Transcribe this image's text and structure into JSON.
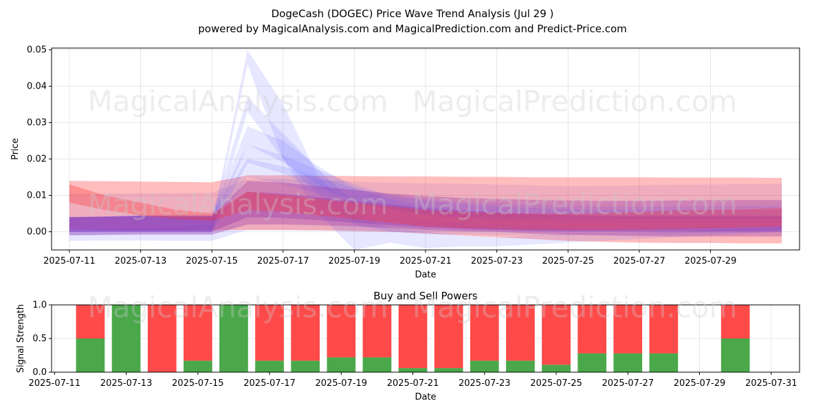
{
  "header": {
    "title": "DogeCash (DOGEC) Price Wave Trend Analysis (Jul 29 )",
    "subtitle": "powered by MagicalAnalysis.com and MagicalPrediction.com and Predict-Price.com"
  },
  "watermarks": [
    "MagicalAnalysis.com",
    "MagicalPrediction.com"
  ],
  "colors": {
    "blue_band": "#5555ff",
    "red_band": "#ff3333",
    "purple_band": "#9933aa",
    "buy": "#4aa84a",
    "sell": "#ff4a4a",
    "grid": "#e0e0e0"
  },
  "chart_data": [
    {
      "type": "area",
      "title": "",
      "xlabel": "Date",
      "ylabel": "Price",
      "xlim": [
        "2025-07-10T12:00",
        "2025-07-31T12:00"
      ],
      "ylim": [
        -0.005,
        0.0505
      ],
      "x_ticks": [
        "2025-07-11",
        "2025-07-13",
        "2025-07-15",
        "2025-07-17",
        "2025-07-19",
        "2025-07-21",
        "2025-07-23",
        "2025-07-25",
        "2025-07-27",
        "2025-07-29"
      ],
      "y_ticks": [
        "0.00",
        "0.01",
        "0.02",
        "0.03",
        "0.04",
        "0.05"
      ],
      "grid": true,
      "dates": [
        "2025-07-10",
        "2025-07-11",
        "2025-07-12",
        "2025-07-13",
        "2025-07-14",
        "2025-07-15",
        "2025-07-16",
        "2025-07-17",
        "2025-07-18",
        "2025-07-19",
        "2025-07-20",
        "2025-07-21",
        "2025-07-22",
        "2025-07-23",
        "2025-07-24",
        "2025-07-25",
        "2025-07-26",
        "2025-07-27",
        "2025-07-28",
        "2025-07-29",
        "2025-07-30",
        "2025-07-31"
      ],
      "series": [
        {
          "color": "blue",
          "upper": [
            null,
            0.0105,
            0.0105,
            0.0106,
            0.0106,
            0.0107,
            0.0145,
            0.0145,
            0.0142,
            0.0138,
            0.0135,
            0.0133,
            0.0132,
            0.013,
            0.0128,
            0.0125,
            0.0126,
            0.0128,
            0.0129,
            0.013,
            0.0131,
            0.0132
          ],
          "lower": [
            null,
            -0.0025,
            -0.0024,
            -0.0024,
            -0.0025,
            -0.0025,
            0.0005,
            0.0004,
            0.0003,
            0.0002,
            0.0001,
            0.0,
            0.0,
            0.0,
            0.0,
            0.0,
            0.0,
            0.0,
            0.0,
            0.0,
            0.0,
            0.0
          ]
        },
        {
          "color": "red",
          "upper": [
            null,
            0.014,
            0.0139,
            0.0138,
            0.0137,
            0.0136,
            0.0155,
            0.0155,
            0.0154,
            0.0153,
            0.0152,
            0.0152,
            0.0151,
            0.0151,
            0.015,
            0.015,
            0.015,
            0.015,
            0.0149,
            0.0149,
            0.0149,
            0.0148
          ],
          "lower": [
            null,
            0.0008,
            0.0005,
            0.0004,
            0.0004,
            0.0004,
            0.0005,
            0.0005,
            0.0004,
            0.0002,
            0.0,
            -0.0005,
            -0.001,
            -0.0015,
            -0.002,
            -0.0025,
            -0.0028,
            -0.003,
            -0.0031,
            -0.0031,
            -0.0032,
            -0.0032
          ]
        },
        {
          "color": "blue",
          "upper": [
            null,
            0.0005,
            0.0008,
            0.0012,
            0.0015,
            0.002,
            0.05,
            0.035,
            0.015,
            0.005,
            0.001,
            0.0,
            -0.001,
            -0.0015,
            -0.001,
            -0.0005,
            -0.0005,
            -0.0003,
            0.0,
            0.0005,
            0.001,
            0.0015
          ],
          "lower": [
            null,
            -0.001,
            -0.0008,
            -0.0005,
            -0.0005,
            -0.0005,
            0.046,
            0.02,
            0.005,
            -0.005,
            -0.003,
            -0.0045,
            -0.004,
            -0.004,
            -0.0035,
            -0.003,
            -0.0025,
            -0.002,
            -0.0015,
            -0.001,
            -0.0005,
            0.0
          ]
        },
        {
          "color": "blue",
          "upper": [
            null,
            0.004,
            0.0042,
            0.0045,
            0.0045,
            0.0045,
            0.037,
            0.027,
            0.017,
            0.008,
            0.004,
            0.003,
            0.0025,
            0.002,
            0.0018,
            0.0015,
            0.0015,
            0.0015,
            0.0015,
            0.0015,
            0.0016,
            0.0017
          ],
          "lower": [
            null,
            0.0,
            0.0,
            0.0,
            0.0,
            0.0,
            0.033,
            0.02,
            0.01,
            0.002,
            0.0,
            -0.0005,
            -0.0008,
            -0.001,
            -0.001,
            -0.001,
            -0.0008,
            -0.0006,
            -0.0005,
            -0.0004,
            -0.0003,
            -0.0002
          ]
        },
        {
          "color": "blue",
          "upper": [
            null,
            0.004,
            0.0042,
            0.0045,
            0.0045,
            0.0045,
            0.029,
            0.025,
            0.018,
            0.012,
            0.009,
            0.007,
            0.006,
            0.0055,
            0.005,
            0.0048,
            0.0046,
            0.0045,
            0.0045,
            0.0045,
            0.0045,
            0.0045
          ],
          "lower": [
            null,
            0.0,
            0.0,
            0.0,
            0.0,
            0.0,
            0.024,
            0.019,
            0.013,
            0.007,
            0.004,
            0.002,
            0.001,
            0.0005,
            0.0002,
            0.0,
            0.0,
            0.0,
            0.0,
            0.0,
            0.0,
            0.0
          ]
        },
        {
          "color": "blue",
          "upper": [
            null,
            0.004,
            0.0042,
            0.0045,
            0.0045,
            0.0045,
            0.024,
            0.021,
            0.017,
            0.013,
            0.01,
            0.0085,
            0.0075,
            0.007,
            0.0065,
            0.0062,
            0.006,
            0.006,
            0.006,
            0.006,
            0.006,
            0.006
          ],
          "lower": [
            null,
            0.0,
            0.0,
            0.0,
            0.0,
            0.0,
            0.019,
            0.016,
            0.012,
            0.0085,
            0.006,
            0.0045,
            0.0035,
            0.003,
            0.0028,
            0.0025,
            0.0025,
            0.0025,
            0.0025,
            0.0025,
            0.0025,
            0.0025
          ]
        },
        {
          "color": "blue",
          "upper": [
            null,
            0.004,
            0.0042,
            0.0045,
            0.0045,
            0.0045,
            0.02,
            0.018,
            0.015,
            0.012,
            0.01,
            0.009,
            0.0082,
            0.0078,
            0.0075,
            0.0072,
            0.007,
            0.007,
            0.007,
            0.007,
            0.007,
            0.007
          ],
          "lower": [
            null,
            0.0,
            0.0,
            0.0,
            0.0,
            0.0,
            0.015,
            0.013,
            0.0105,
            0.008,
            0.0062,
            0.005,
            0.0042,
            0.0038,
            0.0036,
            0.0035,
            0.0035,
            0.0035,
            0.0035,
            0.0035,
            0.0035,
            0.0035
          ]
        },
        {
          "color": "purple",
          "upper": [
            null,
            0.004,
            0.0041,
            0.0043,
            0.0042,
            0.0042,
            0.014,
            0.0135,
            0.0125,
            0.0115,
            0.0105,
            0.0098,
            0.0093,
            0.009,
            0.0088,
            0.0086,
            0.0085,
            0.0085,
            0.0086,
            0.0087,
            0.0087,
            0.0087
          ],
          "lower": [
            null,
            -0.001,
            -0.0009,
            -0.0008,
            -0.0008,
            -0.0008,
            0.002,
            0.002,
            0.0018,
            0.0015,
            0.001,
            0.0005,
            0.0002,
            0.0,
            -0.0005,
            -0.0008,
            -0.001,
            -0.0012,
            -0.0013,
            -0.0013,
            -0.0013,
            -0.0013
          ]
        },
        {
          "color": "purple",
          "upper": [
            null,
            0.004,
            0.0041,
            0.0043,
            0.0042,
            0.0042,
            0.011,
            0.0105,
            0.0095,
            0.0085,
            0.0075,
            0.0065,
            0.0058,
            0.0052,
            0.0048,
            0.0045,
            0.0043,
            0.0042,
            0.0042,
            0.0042,
            0.0042,
            0.0042
          ],
          "lower": [
            null,
            0.0,
            0.0,
            0.0,
            0.0,
            0.0,
            0.004,
            0.0038,
            0.0032,
            0.0025,
            0.0018,
            0.0012,
            0.0008,
            0.0005,
            0.0003,
            0.0002,
            0.0002,
            0.0002,
            0.0002,
            0.0002,
            0.0002,
            0.0002
          ]
        },
        {
          "color": "red",
          "upper": [
            null,
            0.013,
            0.01,
            0.008,
            0.006,
            0.005,
            0.011,
            0.01,
            0.009,
            0.008,
            0.007,
            0.006,
            0.0055,
            0.0052,
            0.005,
            0.005,
            0.0052,
            0.0055,
            0.0058,
            0.006,
            0.0062,
            0.0065
          ],
          "lower": [
            null,
            0.008,
            0.006,
            0.0045,
            0.0035,
            0.003,
            0.006,
            0.0055,
            0.0045,
            0.0035,
            0.0025,
            0.0015,
            0.001,
            0.0008,
            0.0006,
            0.0005,
            0.0005,
            0.0006,
            0.0008,
            0.001,
            0.0012,
            0.0015
          ]
        }
      ]
    },
    {
      "type": "bar",
      "title": "Buy and Sell Powers",
      "xlabel": "Date",
      "ylabel": "Signal Strength",
      "xlim": [
        "2025-07-10T22:00",
        "2025-07-31T19:00"
      ],
      "ylim": [
        0,
        1
      ],
      "x_ticks": [
        "2025-07-11",
        "2025-07-13",
        "2025-07-15",
        "2025-07-17",
        "2025-07-19",
        "2025-07-21",
        "2025-07-23",
        "2025-07-25",
        "2025-07-27",
        "2025-07-29",
        "2025-07-31"
      ],
      "y_ticks": [
        "0.0",
        "0.5",
        "1.0"
      ],
      "grid": true,
      "categories": [
        "2025-07-12",
        "2025-07-13",
        "2025-07-14",
        "2025-07-15",
        "2025-07-16",
        "2025-07-17",
        "2025-07-18",
        "2025-07-19",
        "2025-07-20",
        "2025-07-21",
        "2025-07-22",
        "2025-07-23",
        "2025-07-24",
        "2025-07-25",
        "2025-07-26",
        "2025-07-27",
        "2025-07-28",
        "2025-07-30"
      ],
      "series": [
        {
          "name": "Buy",
          "values": [
            0.5,
            1.0,
            0.0,
            0.17,
            1.0,
            0.17,
            0.17,
            0.22,
            0.22,
            0.06,
            0.06,
            0.17,
            0.17,
            0.11,
            0.28,
            0.28,
            0.28,
            0.5
          ]
        },
        {
          "name": "Sell",
          "values": [
            0.5,
            0.0,
            1.0,
            0.83,
            0.0,
            0.83,
            0.83,
            0.78,
            0.78,
            0.94,
            0.94,
            0.83,
            0.83,
            0.89,
            0.72,
            0.72,
            0.72,
            0.5
          ]
        }
      ]
    }
  ]
}
